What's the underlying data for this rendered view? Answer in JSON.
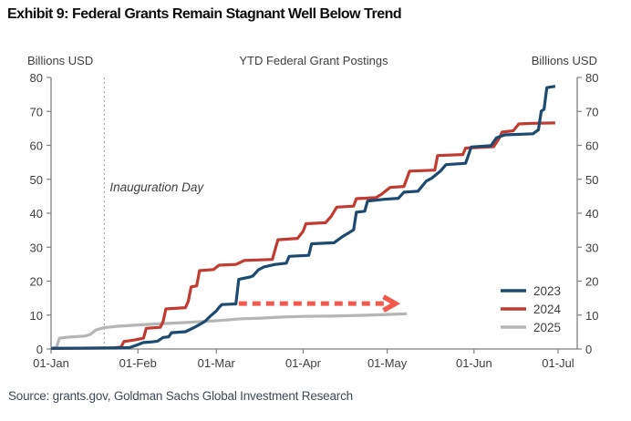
{
  "header": {
    "title": "Exhibit 9: Federal Grants Remain Stagnant Well Below Trend"
  },
  "footer": {
    "source": "Source: grants.gov, Goldman Sachs Global Investment Research"
  },
  "colors": {
    "series_2023": "#1c4a70",
    "series_2024": "#c23b31",
    "series_2025": "#b5b5b5",
    "arrow": "#f4594e",
    "axis": "#7f7f7f",
    "tick_text": "#3f3f3f",
    "vline": "#a8a8a8",
    "annotation_text": "#404040",
    "title_text": "#0d0d0d",
    "source_text": "#3d4a57"
  },
  "chart_data": {
    "type": "line",
    "title": "YTD Federal Grant Postings",
    "ylabel_left": "Billions USD",
    "ylabel_right": "Billions USD",
    "ylim": [
      0,
      80
    ],
    "yticks": [
      0,
      10,
      20,
      30,
      40,
      50,
      60,
      70,
      80
    ],
    "x_unit": "days since 01-Jan",
    "xlim_days": [
      0,
      181
    ],
    "xticks": [
      {
        "label": "01-Jan",
        "day": 0
      },
      {
        "label": "01-Feb",
        "day": 31
      },
      {
        "label": "01-Mar",
        "day": 59
      },
      {
        "label": "01-Apr",
        "day": 90
      },
      {
        "label": "01-May",
        "day": 120
      },
      {
        "label": "01-Jun",
        "day": 151
      },
      {
        "label": "01-Jul",
        "day": 181
      }
    ],
    "grid": false,
    "legend_position": "right-bottom",
    "annotations": {
      "vline": {
        "label": "Inauguration Day",
        "day": 19
      },
      "arrow": {
        "from_day": 67,
        "to_day": 119,
        "value": 13.4
      }
    },
    "series": [
      {
        "name": "2025",
        "color_key": "series_2025",
        "points": [
          [
            0,
            0.1
          ],
          [
            2,
            0.6
          ],
          [
            3,
            3.2
          ],
          [
            6,
            3.5
          ],
          [
            12,
            3.8
          ],
          [
            14,
            4.3
          ],
          [
            16,
            5.6
          ],
          [
            18,
            6.1
          ],
          [
            19,
            6.3
          ],
          [
            24,
            6.7
          ],
          [
            31,
            7.1
          ],
          [
            40,
            7.5
          ],
          [
            50,
            7.9
          ],
          [
            58,
            8.3
          ],
          [
            62,
            8.5
          ],
          [
            68,
            8.9
          ],
          [
            75,
            9.1
          ],
          [
            82,
            9.4
          ],
          [
            90,
            9.6
          ],
          [
            100,
            9.7
          ],
          [
            110,
            9.9
          ],
          [
            118,
            10.1
          ],
          [
            121,
            10.2
          ],
          [
            127,
            10.4
          ]
        ]
      },
      {
        "name": "2024",
        "color_key": "series_2024",
        "points": [
          [
            0,
            0.2
          ],
          [
            22,
            0.3
          ],
          [
            25,
            0.6
          ],
          [
            26,
            2.2
          ],
          [
            30,
            2.7
          ],
          [
            33,
            3.2
          ],
          [
            34,
            6.1
          ],
          [
            39,
            6.4
          ],
          [
            40,
            8.1
          ],
          [
            41,
            11.8
          ],
          [
            48,
            12.2
          ],
          [
            49,
            14.1
          ],
          [
            50,
            18.3
          ],
          [
            52,
            18.6
          ],
          [
            53,
            23.1
          ],
          [
            58,
            23.4
          ],
          [
            60,
            24.7
          ],
          [
            66,
            24.9
          ],
          [
            69,
            26.1
          ],
          [
            79,
            26.4
          ],
          [
            81,
            32.2
          ],
          [
            88,
            32.6
          ],
          [
            90,
            34.7
          ],
          [
            91,
            36.9
          ],
          [
            98,
            37.2
          ],
          [
            100,
            39.1
          ],
          [
            102,
            41.8
          ],
          [
            108,
            42.1
          ],
          [
            109,
            44.3
          ],
          [
            116,
            44.6
          ],
          [
            118,
            45.6
          ],
          [
            121,
            47.6
          ],
          [
            126,
            47.9
          ],
          [
            128,
            52.4
          ],
          [
            137,
            52.7
          ],
          [
            138,
            57.0
          ],
          [
            147,
            57.3
          ],
          [
            148,
            59.2
          ],
          [
            158,
            59.6
          ],
          [
            160,
            62.1
          ],
          [
            161,
            63.9
          ],
          [
            165,
            64.3
          ],
          [
            167,
            66.3
          ],
          [
            172,
            66.5
          ],
          [
            180,
            66.6
          ]
        ]
      },
      {
        "name": "2023",
        "color_key": "series_2023",
        "points": [
          [
            0,
            0.2
          ],
          [
            20,
            0.3
          ],
          [
            28,
            0.4
          ],
          [
            31,
            1.3
          ],
          [
            33,
            1.9
          ],
          [
            36,
            2.1
          ],
          [
            38,
            2.3
          ],
          [
            40,
            3.4
          ],
          [
            42,
            3.6
          ],
          [
            43,
            4.8
          ],
          [
            48,
            5.1
          ],
          [
            51,
            6.3
          ],
          [
            53,
            7.2
          ],
          [
            55,
            8.2
          ],
          [
            57,
            9.8
          ],
          [
            59,
            11.2
          ],
          [
            60,
            12.3
          ],
          [
            61,
            13.1
          ],
          [
            66,
            13.3
          ],
          [
            67,
            20.5
          ],
          [
            71,
            21.2
          ],
          [
            72,
            21.5
          ],
          [
            74,
            23.3
          ],
          [
            76,
            24.2
          ],
          [
            80,
            24.9
          ],
          [
            84,
            25.3
          ],
          [
            85,
            27.3
          ],
          [
            92,
            27.6
          ],
          [
            93,
            31.0
          ],
          [
            101,
            31.3
          ],
          [
            104,
            33.1
          ],
          [
            106,
            34.1
          ],
          [
            108,
            35.1
          ],
          [
            109,
            40.3
          ],
          [
            112,
            40.6
          ],
          [
            113,
            43.6
          ],
          [
            119,
            44.1
          ],
          [
            124,
            44.4
          ],
          [
            126,
            46.2
          ],
          [
            131,
            46.5
          ],
          [
            134,
            49.5
          ],
          [
            136,
            50.4
          ],
          [
            139,
            52.4
          ],
          [
            141,
            54.3
          ],
          [
            148,
            54.7
          ],
          [
            150,
            59.5
          ],
          [
            157,
            59.9
          ],
          [
            159,
            62.2
          ],
          [
            162,
            63.1
          ],
          [
            172,
            63.4
          ],
          [
            174,
            64.6
          ],
          [
            175,
            70.1
          ],
          [
            176,
            70.6
          ],
          [
            177,
            77.0
          ],
          [
            180,
            77.4
          ]
        ]
      }
    ],
    "legend_order": [
      "2023",
      "2024",
      "2025"
    ]
  }
}
